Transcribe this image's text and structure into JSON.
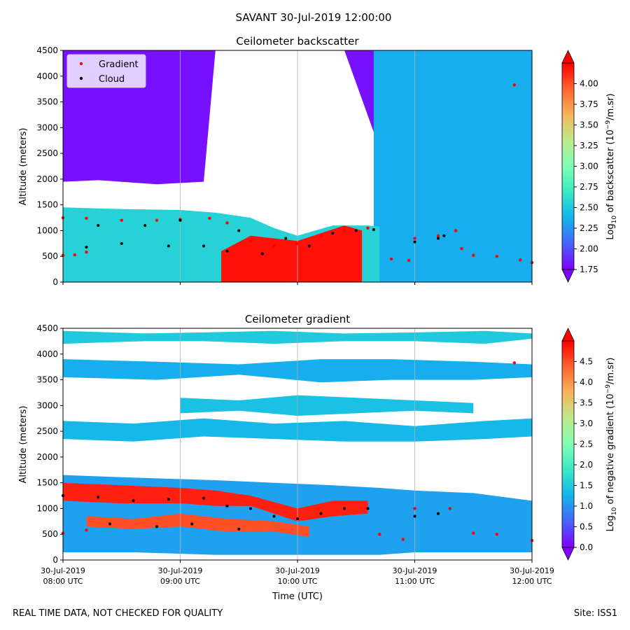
{
  "suptitle": "SAVANT 30-Jul-2019 12:00:00",
  "footer_left": "REAL TIME DATA, NOT CHECKED FOR QUALITY",
  "footer_right": "Site: ISS1",
  "colors": {
    "gradient_marker": "#ff0000",
    "cloud_marker": "#000000",
    "colormap": [
      "#7f00ff",
      "#4763fb",
      "#12b4eb",
      "#38e9c5",
      "#80ffb4",
      "#c0e98d",
      "#f6b45c",
      "#ff6330",
      "#ff0000"
    ]
  },
  "chart_data": [
    {
      "type": "heatmap",
      "name": "backscatter",
      "title": "Ceilometer backscatter",
      "xlabel": "",
      "ylabel": "Altitude (meters)",
      "ylim": [
        0,
        4500
      ],
      "yticks": [
        "0",
        "500",
        "1000",
        "1500",
        "2000",
        "2500",
        "3000",
        "3500",
        "4000",
        "4500"
      ],
      "xlim_hours": [
        8,
        12
      ],
      "grid_x": true,
      "legend": {
        "position": "top-left",
        "entries": [
          {
            "label": "Gradient",
            "color": "#ff0000"
          },
          {
            "label": "Cloud",
            "color": "#000000"
          }
        ]
      },
      "colorbar": {
        "label_prefix": "Log",
        "label_sub": "10",
        "label_rest": " of backscatter (10",
        "label_sup": "−9",
        "label_suffix": "/m.sr)",
        "vmin": 1.75,
        "vmax": 4.25,
        "extend": "both",
        "ticks": [
          "1.75",
          "2.00",
          "2.25",
          "2.50",
          "2.75",
          "3.00",
          "3.25",
          "3.50",
          "3.75",
          "4.00"
        ]
      },
      "layers": [
        {
          "name": "clear-air-upper",
          "t": [
            8.0,
            8.3,
            8.8,
            9.2,
            9.3,
            9.6,
            10.4,
            10.7,
            10.9,
            11.3,
            12.0
          ],
          "top": [
            4500,
            4500,
            4500,
            4500,
            4500,
            4500,
            4500,
            4500,
            4500,
            4500,
            4500
          ],
          "bottom": [
            1950,
            1980,
            1900,
            1950,
            4500,
            4500,
            4500,
            2600,
            2400,
            2400,
            2400
          ],
          "value": 1.8
        },
        {
          "name": "upper-aerosol-band",
          "t": [
            10.65,
            10.8,
            11.0,
            11.3,
            11.6,
            12.0
          ],
          "top": [
            4500,
            4500,
            4500,
            4500,
            4500,
            4500
          ],
          "bottom": [
            0,
            0,
            0,
            0,
            0,
            0
          ],
          "value": 2.35
        },
        {
          "name": "boundary-layer",
          "t": [
            8.0,
            8.5,
            9.0,
            9.3,
            9.6,
            9.8,
            10.0,
            10.3,
            10.6,
            10.7
          ],
          "top": [
            1450,
            1420,
            1400,
            1350,
            1250,
            1050,
            900,
            1100,
            1100,
            1080
          ],
          "bottom": [
            0,
            0,
            0,
            0,
            0,
            0,
            0,
            0,
            0,
            0
          ],
          "value": 2.55
        },
        {
          "name": "strong-layer",
          "t": [
            9.35,
            9.6,
            9.8,
            10.0,
            10.2,
            10.4,
            10.55
          ],
          "top": [
            600,
            900,
            850,
            800,
            950,
            1100,
            1000
          ],
          "bottom": [
            0,
            0,
            0,
            0,
            0,
            0,
            0
          ],
          "value": 4.2
        }
      ],
      "gradient_points": [
        {
          "t": 8.0,
          "alt": 520
        },
        {
          "t": 8.1,
          "alt": 530
        },
        {
          "t": 8.2,
          "alt": 580
        },
        {
          "t": 8.0,
          "alt": 1250
        },
        {
          "t": 8.2,
          "alt": 1240
        },
        {
          "t": 8.5,
          "alt": 1200
        },
        {
          "t": 8.8,
          "alt": 1200
        },
        {
          "t": 9.0,
          "alt": 1220
        },
        {
          "t": 9.25,
          "alt": 1240
        },
        {
          "t": 9.4,
          "alt": 1150
        },
        {
          "t": 9.6,
          "alt": 800
        },
        {
          "t": 9.8,
          "alt": 700
        },
        {
          "t": 10.0,
          "alt": 750
        },
        {
          "t": 10.2,
          "alt": 900
        },
        {
          "t": 10.4,
          "alt": 1000
        },
        {
          "t": 10.6,
          "alt": 1050
        },
        {
          "t": 10.8,
          "alt": 450
        },
        {
          "t": 10.95,
          "alt": 420
        },
        {
          "t": 11.0,
          "alt": 850
        },
        {
          "t": 11.2,
          "alt": 900
        },
        {
          "t": 11.35,
          "alt": 1000
        },
        {
          "t": 11.4,
          "alt": 650
        },
        {
          "t": 11.5,
          "alt": 520
        },
        {
          "t": 11.7,
          "alt": 500
        },
        {
          "t": 11.9,
          "alt": 430
        },
        {
          "t": 12.0,
          "alt": 380
        },
        {
          "t": 11.85,
          "alt": 3830
        }
      ],
      "cloud_points": [
        {
          "t": 8.2,
          "alt": 680
        },
        {
          "t": 8.3,
          "alt": 1100
        },
        {
          "t": 8.5,
          "alt": 750
        },
        {
          "t": 8.7,
          "alt": 1100
        },
        {
          "t": 8.9,
          "alt": 700
        },
        {
          "t": 9.0,
          "alt": 1200
        },
        {
          "t": 9.2,
          "alt": 700
        },
        {
          "t": 9.4,
          "alt": 600
        },
        {
          "t": 9.5,
          "alt": 1000
        },
        {
          "t": 9.7,
          "alt": 550
        },
        {
          "t": 9.9,
          "alt": 850
        },
        {
          "t": 10.1,
          "alt": 700
        },
        {
          "t": 10.3,
          "alt": 950
        },
        {
          "t": 10.5,
          "alt": 1000
        },
        {
          "t": 10.65,
          "alt": 1020
        },
        {
          "t": 11.0,
          "alt": 780
        },
        {
          "t": 11.2,
          "alt": 850
        },
        {
          "t": 11.25,
          "alt": 900
        }
      ]
    },
    {
      "type": "heatmap",
      "name": "gradient",
      "title": "Ceilometer gradient",
      "xlabel": "Time (UTC)",
      "ylabel": "Altitude (meters)",
      "ylim": [
        0,
        4500
      ],
      "yticks": [
        "0",
        "500",
        "1000",
        "1500",
        "2000",
        "2500",
        "3000",
        "3500",
        "4000",
        "4500"
      ],
      "xlim_hours": [
        8,
        12
      ],
      "xticks": [
        {
          "hour": 8,
          "date": "30-Jul-2019",
          "time": "08:00 UTC"
        },
        {
          "hour": 9,
          "date": "30-Jul-2019",
          "time": "09:00 UTC"
        },
        {
          "hour": 10,
          "date": "30-Jul-2019",
          "time": "10:00 UTC"
        },
        {
          "hour": 11,
          "date": "30-Jul-2019",
          "time": "11:00 UTC"
        },
        {
          "hour": 12,
          "date": "30-Jul-2019",
          "time": "12:00 UTC"
        }
      ],
      "grid_x": true,
      "colorbar": {
        "label_prefix": "Log",
        "label_sub": "10",
        "label_rest": " of negative gradient (10",
        "label_sup": "−9",
        "label_suffix": "/m.sr)",
        "vmin": 0.0,
        "vmax": 5.0,
        "extend": "both",
        "ticks": [
          "0.0",
          "0.5",
          "1.0",
          "1.5",
          "2.0",
          "2.5",
          "3.0",
          "3.5",
          "4.0",
          "4.5"
        ]
      },
      "layers": [
        {
          "name": "band-4300",
          "t": [
            8.0,
            8.7,
            9.2,
            9.8,
            10.4,
            11.0,
            11.6,
            12.0
          ],
          "top": [
            4450,
            4400,
            4420,
            4450,
            4400,
            4420,
            4450,
            4400
          ],
          "bottom": [
            4200,
            4250,
            4250,
            4200,
            4250,
            4250,
            4200,
            4300
          ],
          "value": 1.5
        },
        {
          "name": "band-3700",
          "t": [
            8.0,
            8.8,
            9.5,
            10.2,
            10.8,
            11.5,
            12.0
          ],
          "top": [
            3900,
            3850,
            3800,
            3900,
            3900,
            3850,
            3800
          ],
          "bottom": [
            3550,
            3500,
            3600,
            3450,
            3500,
            3500,
            3550
          ],
          "value": 1.2
        },
        {
          "name": "band-3000",
          "t": [
            9.0,
            9.5,
            10.0,
            10.5,
            11.0,
            11.5
          ],
          "top": [
            3150,
            3100,
            3200,
            3150,
            3100,
            3050
          ],
          "bottom": [
            2850,
            2900,
            2800,
            2850,
            2900,
            2850
          ],
          "value": 1.4
        },
        {
          "name": "band-2500",
          "t": [
            8.0,
            8.6,
            9.2,
            9.8,
            10.4,
            11.0,
            11.6,
            12.0
          ],
          "top": [
            2700,
            2650,
            2750,
            2650,
            2700,
            2600,
            2700,
            2750
          ],
          "bottom": [
            2350,
            2300,
            2400,
            2350,
            2300,
            2300,
            2350,
            2400
          ],
          "value": 1.3
        },
        {
          "name": "boundary-band",
          "t": [
            8.0,
            8.6,
            9.3,
            9.8,
            10.3,
            10.7,
            11.0,
            11.5,
            12.0
          ],
          "top": [
            1650,
            1600,
            1550,
            1500,
            1450,
            1400,
            1350,
            1300,
            1150
          ],
          "bottom": [
            150,
            150,
            100,
            100,
            100,
            100,
            150,
            150,
            150
          ],
          "value": 1.1
        },
        {
          "name": "top-gradient-layer",
          "t": [
            8.0,
            8.5,
            9.0,
            9.3,
            9.6,
            10.0,
            10.3,
            10.6
          ],
          "top": [
            1500,
            1450,
            1400,
            1350,
            1250,
            1000,
            1150,
            1150
          ],
          "bottom": [
            1150,
            1100,
            1100,
            1050,
            1050,
            750,
            850,
            900
          ],
          "value": 4.8
        },
        {
          "name": "low-gradient-layer",
          "t": [
            8.2,
            8.6,
            9.0,
            9.4,
            9.8,
            10.1
          ],
          "top": [
            850,
            800,
            900,
            800,
            750,
            650
          ],
          "bottom": [
            650,
            600,
            650,
            550,
            550,
            450
          ],
          "value": 4.5
        }
      ],
      "gradient_points": [
        {
          "t": 8.0,
          "alt": 520
        },
        {
          "t": 8.2,
          "alt": 580
        },
        {
          "t": 10.7,
          "alt": 500
        },
        {
          "t": 10.9,
          "alt": 400
        },
        {
          "t": 11.0,
          "alt": 1000
        },
        {
          "t": 11.3,
          "alt": 1000
        },
        {
          "t": 11.5,
          "alt": 520
        },
        {
          "t": 11.7,
          "alt": 500
        },
        {
          "t": 12.0,
          "alt": 380
        },
        {
          "t": 11.85,
          "alt": 3830
        }
      ],
      "cloud_points": [
        {
          "t": 8.0,
          "alt": 1250
        },
        {
          "t": 8.3,
          "alt": 1220
        },
        {
          "t": 8.6,
          "alt": 1150
        },
        {
          "t": 8.9,
          "alt": 1180
        },
        {
          "t": 9.2,
          "alt": 1200
        },
        {
          "t": 9.4,
          "alt": 1050
        },
        {
          "t": 9.6,
          "alt": 1000
        },
        {
          "t": 9.8,
          "alt": 850
        },
        {
          "t": 10.0,
          "alt": 800
        },
        {
          "t": 10.2,
          "alt": 900
        },
        {
          "t": 10.4,
          "alt": 1000
        },
        {
          "t": 10.6,
          "alt": 1000
        },
        {
          "t": 11.0,
          "alt": 850
        },
        {
          "t": 11.2,
          "alt": 900
        },
        {
          "t": 8.4,
          "alt": 700
        },
        {
          "t": 8.8,
          "alt": 650
        },
        {
          "t": 9.1,
          "alt": 700
        },
        {
          "t": 9.5,
          "alt": 600
        }
      ]
    }
  ]
}
